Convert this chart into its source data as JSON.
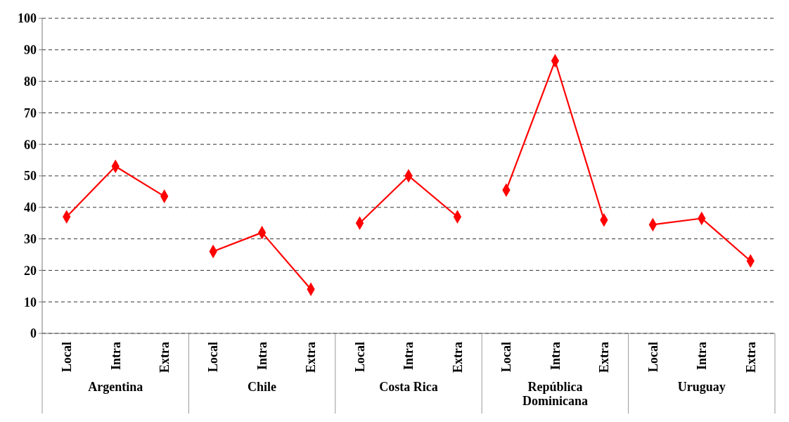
{
  "chart_data": {
    "type": "line",
    "categories": [
      "Local",
      "Intra",
      "Extra",
      "Local",
      "Intra",
      "Extra",
      "Local",
      "Intra",
      "Extra",
      "Local",
      "Intra",
      "Extra",
      "Local",
      "Intra",
      "Extra"
    ],
    "series": [
      {
        "color": "#ff0000",
        "values": [
          37,
          53,
          43.5,
          26,
          32,
          14,
          35,
          50,
          37,
          45.5,
          86.5,
          36,
          34.5,
          36.5,
          23
        ]
      }
    ],
    "annotations": [
      "Argentina",
      "Chile",
      "Costa Rica",
      "República Dominicana",
      "Uruguay"
    ],
    "ylim": [
      0,
      100
    ],
    "yticks": [
      0,
      10,
      20,
      30,
      40,
      50,
      60,
      70,
      80,
      90,
      100
    ],
    "grid": "y",
    "marker": "diamond",
    "line_style": "solid"
  }
}
